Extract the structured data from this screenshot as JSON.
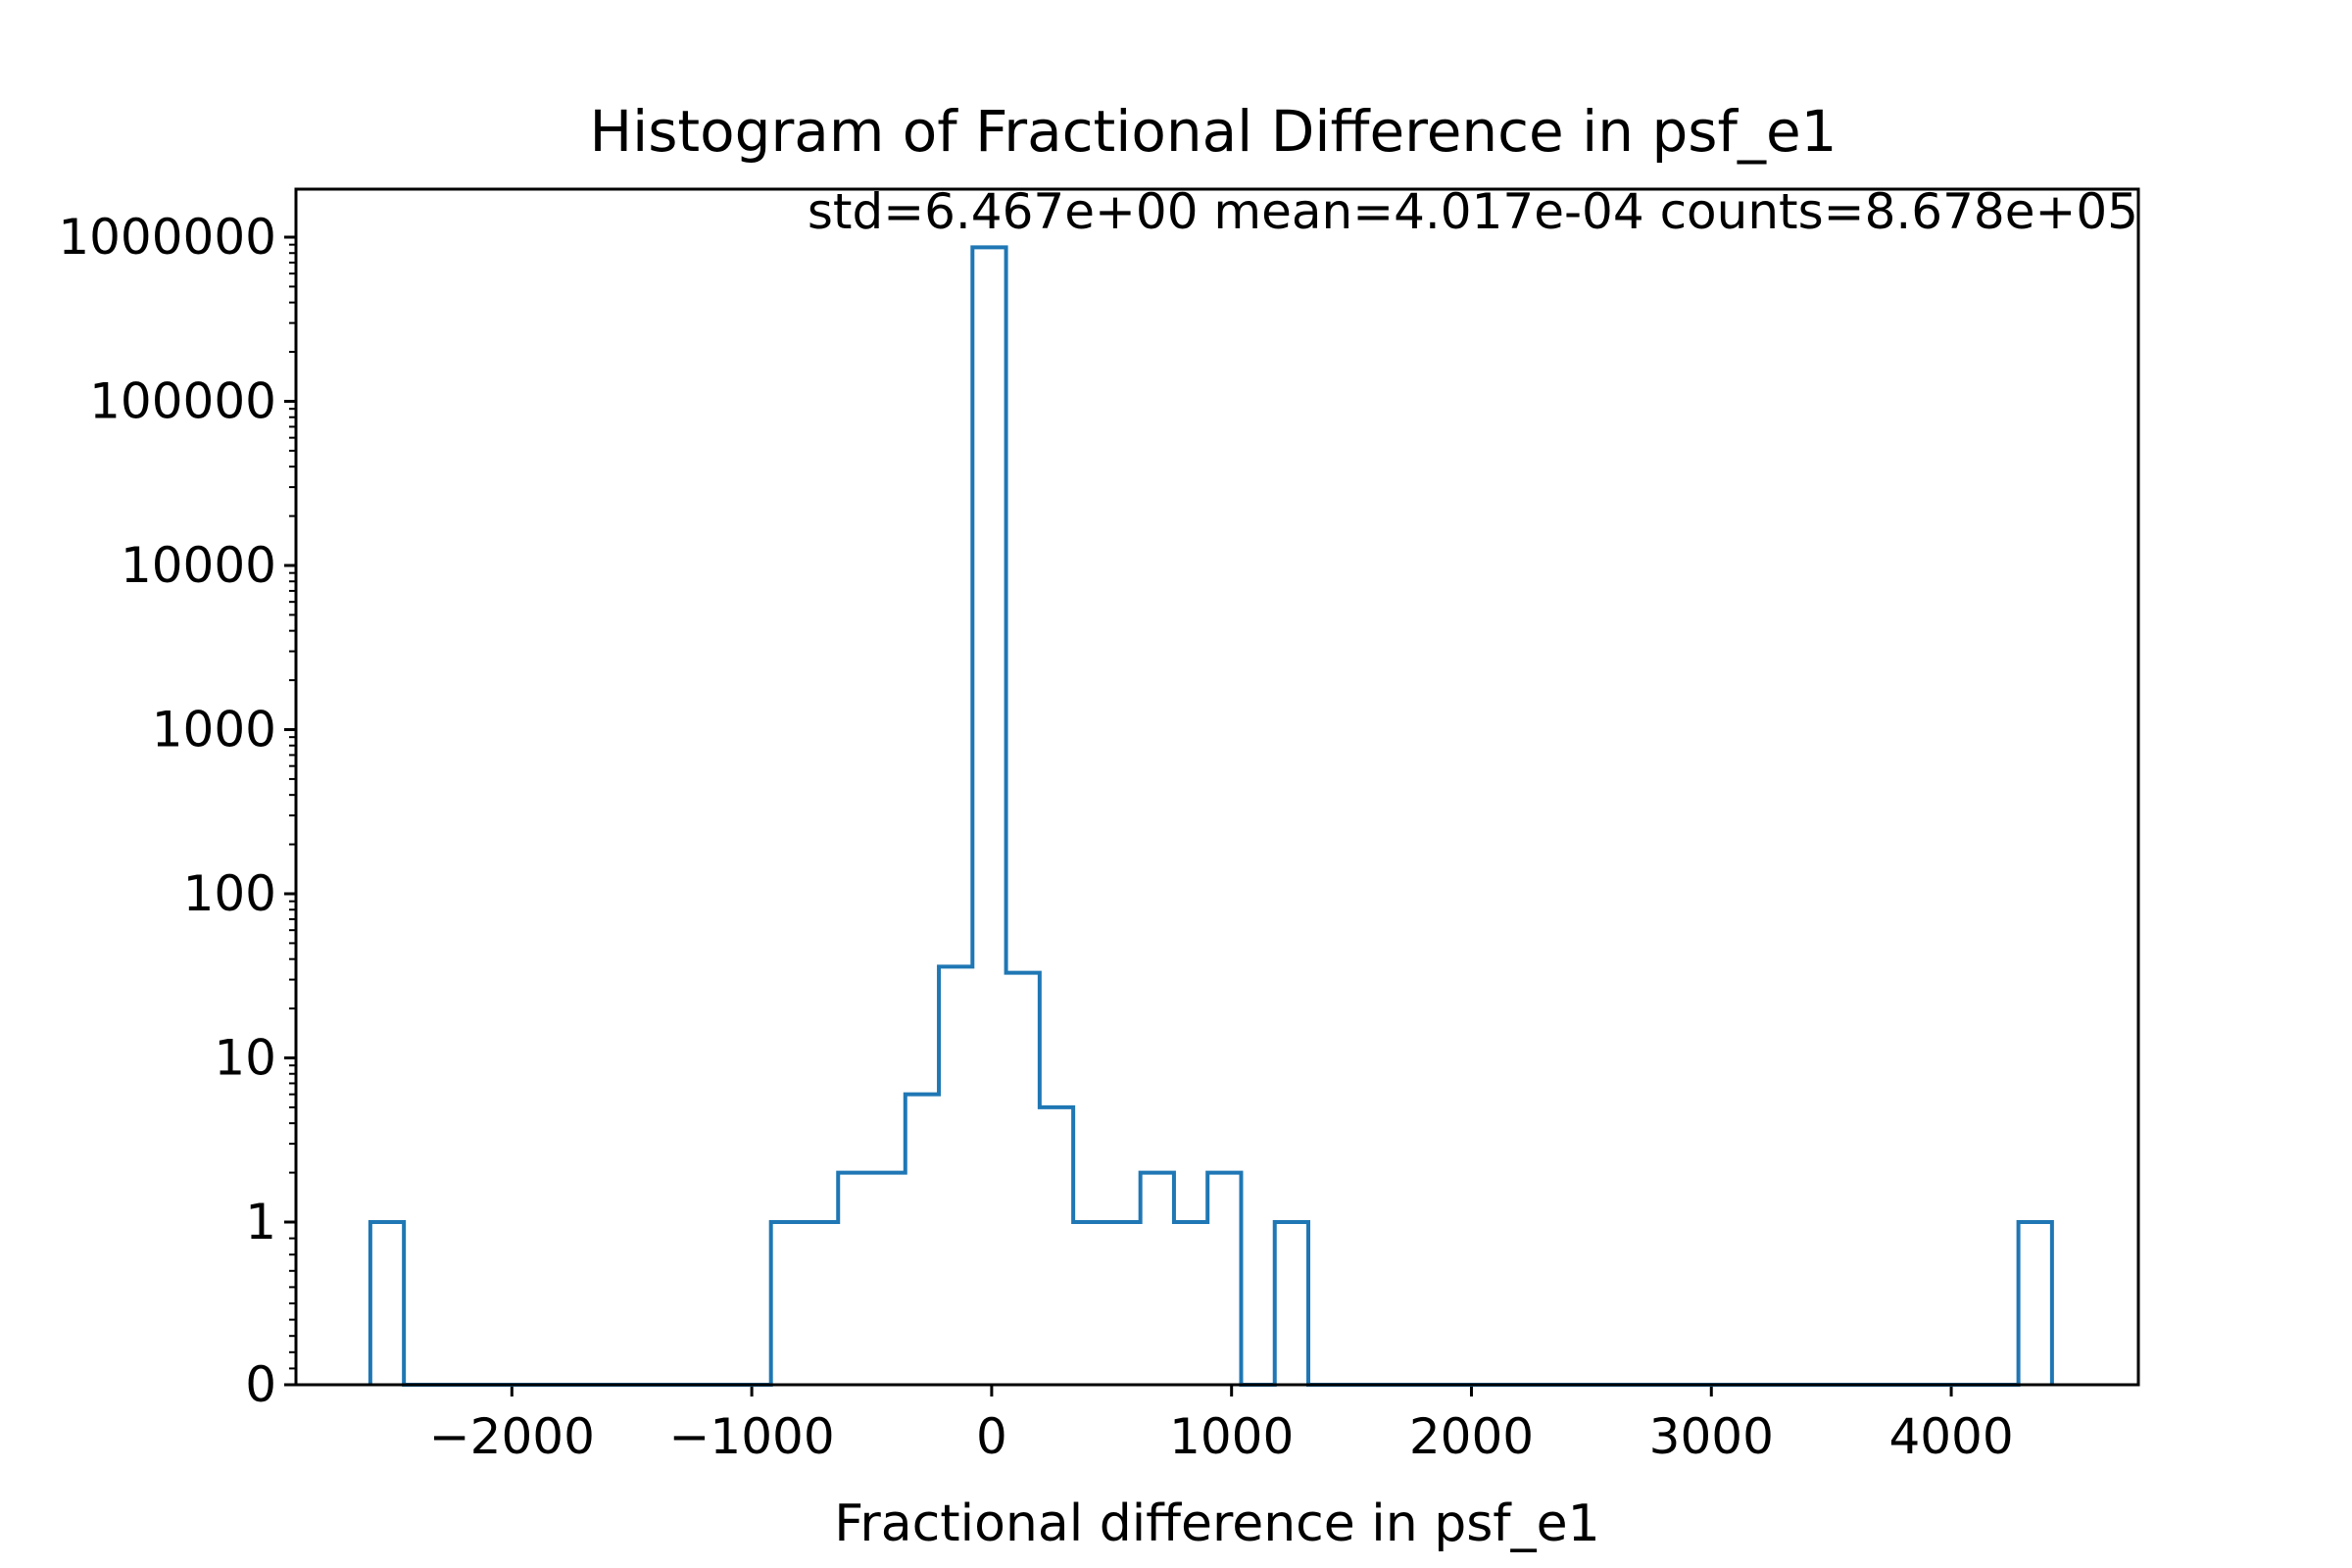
{
  "chart_data": {
    "type": "histogram",
    "title": "Histogram of Fractional Difference in psf_e1",
    "annotation": "std=6.467e+00 mean=4.017e-04 counts=8.678e+05",
    "xlabel": "Fractional difference in psf_e1",
    "ylabel": "",
    "xlim": [
      -2900,
      4780
    ],
    "yscale": "symlog",
    "ylim": [
      0,
      2000000
    ],
    "grid": false,
    "legend": "none",
    "color": "#1f77b4",
    "x_ticks": [
      {
        "value": -2000,
        "label": "−2000"
      },
      {
        "value": -1000,
        "label": "−1000"
      },
      {
        "value": 0,
        "label": "0"
      },
      {
        "value": 1000,
        "label": "1000"
      },
      {
        "value": 2000,
        "label": "2000"
      },
      {
        "value": 3000,
        "label": "3000"
      },
      {
        "value": 4000,
        "label": "4000"
      }
    ],
    "y_ticks": [
      {
        "value": 0,
        "label": "0"
      },
      {
        "value": 1,
        "label": "1"
      },
      {
        "value": 10,
        "label": "10"
      },
      {
        "value": 100,
        "label": "100"
      },
      {
        "value": 1000,
        "label": "1000"
      },
      {
        "value": 10000,
        "label": "10000"
      },
      {
        "value": 100000,
        "label": "100000"
      },
      {
        "value": 1000000,
        "label": "1000000"
      }
    ],
    "bins": [
      {
        "x0": -2590,
        "x1": -2450,
        "count": 1
      },
      {
        "x0": -2450,
        "x1": -920,
        "count": 0
      },
      {
        "x0": -920,
        "x1": -640,
        "count": 1
      },
      {
        "x0": -640,
        "x1": -360,
        "count": 2
      },
      {
        "x0": -360,
        "x1": -220,
        "count": 6
      },
      {
        "x0": -220,
        "x1": -80,
        "count": 36
      },
      {
        "x0": -80,
        "x1": 60,
        "count": 867800
      },
      {
        "x0": 60,
        "x1": 200,
        "count": 33
      },
      {
        "x0": 200,
        "x1": 340,
        "count": 5
      },
      {
        "x0": 340,
        "x1": 620,
        "count": 1
      },
      {
        "x0": 620,
        "x1": 760,
        "count": 2
      },
      {
        "x0": 760,
        "x1": 900,
        "count": 1
      },
      {
        "x0": 900,
        "x1": 1040,
        "count": 2
      },
      {
        "x0": 1040,
        "x1": 1180,
        "count": 0
      },
      {
        "x0": 1180,
        "x1": 1320,
        "count": 1
      },
      {
        "x0": 1320,
        "x1": 4280,
        "count": 0
      },
      {
        "x0": 4280,
        "x1": 4420,
        "count": 1
      }
    ]
  }
}
